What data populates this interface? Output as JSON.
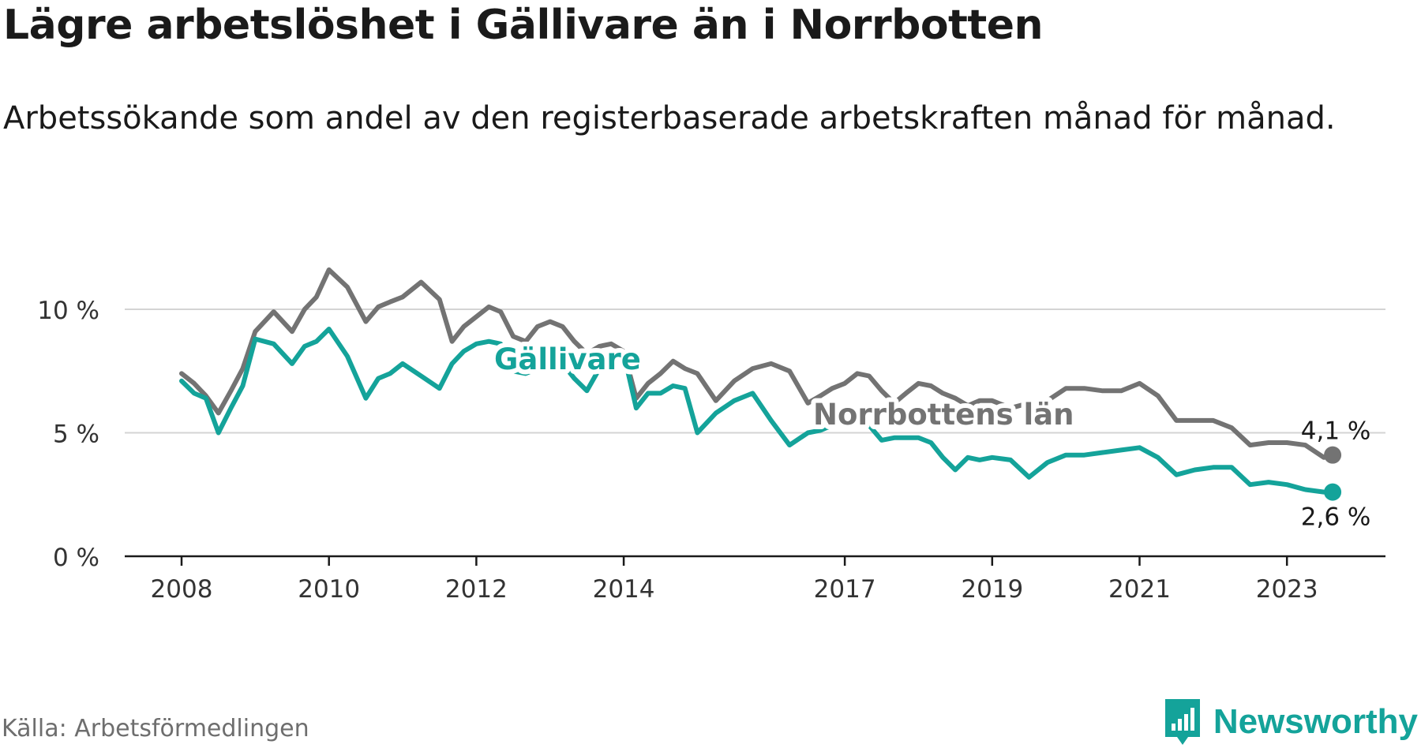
{
  "title": "Lägre arbetslöshet i Gällivare än i Norrbotten",
  "subtitle": "Arbetssökande som andel av den registerbaserade arbetskraften månad för månad.",
  "source": "Källa: Arbetsförmedlingen",
  "brand": "Newsworthy",
  "colors": {
    "gallivare": "#14a39a",
    "norrbotten": "#737373",
    "grid": "#d4d4d4",
    "axis": "#1a1a1a"
  },
  "chart_data": {
    "type": "line",
    "title": "Lägre arbetslöshet i Gällivare än i Norrbotten",
    "xlabel": "",
    "ylabel": "",
    "xlim": [
      2007.0,
      2024.0
    ],
    "ylim": [
      0,
      12
    ],
    "yticks": [
      0,
      5,
      10
    ],
    "ytick_labels": [
      "0 %",
      "5 %",
      "10 %"
    ],
    "xticks": [
      2008,
      2010,
      2012,
      2014,
      2017,
      2019,
      2021,
      2023
    ],
    "xtick_labels": [
      "2008",
      "2010",
      "2012",
      "2014",
      "2017",
      "2019",
      "2021",
      "2023"
    ],
    "grid": true,
    "series": [
      {
        "name": "Norrbottens län",
        "label": "Norrbottens län",
        "end_label": "4,1 %",
        "x": [
          2008.0,
          2008.17,
          2008.33,
          2008.5,
          2008.67,
          2008.83,
          2009.0,
          2009.25,
          2009.5,
          2009.67,
          2009.83,
          2010.0,
          2010.25,
          2010.5,
          2010.67,
          2010.83,
          2011.0,
          2011.25,
          2011.5,
          2011.67,
          2011.83,
          2012.0,
          2012.17,
          2012.33,
          2012.5,
          2012.67,
          2012.83,
          2013.0,
          2013.17,
          2013.33,
          2013.5,
          2013.67,
          2013.83,
          2014.0,
          2014.17,
          2014.33,
          2014.5,
          2014.67,
          2014.83,
          2015.0,
          2015.25,
          2015.5,
          2015.75,
          2016.0,
          2016.25,
          2016.5,
          2016.67,
          2016.83,
          2017.0,
          2017.17,
          2017.33,
          2017.5,
          2017.67,
          2017.83,
          2018.0,
          2018.17,
          2018.33,
          2018.5,
          2018.67,
          2018.83,
          2019.0,
          2019.25,
          2019.5,
          2019.75,
          2020.0,
          2020.25,
          2020.5,
          2020.75,
          2021.0,
          2021.25,
          2021.5,
          2021.75,
          2022.0,
          2022.25,
          2022.5,
          2022.75,
          2023.0,
          2023.25,
          2023.5,
          2023.62
        ],
        "values": [
          7.4,
          7.0,
          6.5,
          5.8,
          6.7,
          7.6,
          9.1,
          9.9,
          9.1,
          10.0,
          10.5,
          11.6,
          10.9,
          9.5,
          10.1,
          10.3,
          10.5,
          11.1,
          10.4,
          8.7,
          9.3,
          9.7,
          10.1,
          9.9,
          8.9,
          8.7,
          9.3,
          9.5,
          9.3,
          8.7,
          8.2,
          8.5,
          8.6,
          8.3,
          6.4,
          7.0,
          7.4,
          7.9,
          7.6,
          7.4,
          6.3,
          7.1,
          7.6,
          7.8,
          7.5,
          6.2,
          6.5,
          6.8,
          7.0,
          7.4,
          7.3,
          6.7,
          6.2,
          6.6,
          7.0,
          6.9,
          6.6,
          6.4,
          6.1,
          6.3,
          6.3,
          6.0,
          6.2,
          6.3,
          6.8,
          6.8,
          6.7,
          6.7,
          7.0,
          6.5,
          5.5,
          5.5,
          5.5,
          5.2,
          4.5,
          4.6,
          4.6,
          4.5,
          4.0,
          4.1
        ]
      },
      {
        "name": "Gällivare",
        "label": "Gällivare",
        "end_label": "2,6 %",
        "x": [
          2008.0,
          2008.17,
          2008.33,
          2008.5,
          2008.67,
          2008.83,
          2009.0,
          2009.25,
          2009.5,
          2009.67,
          2009.83,
          2010.0,
          2010.25,
          2010.5,
          2010.67,
          2010.83,
          2011.0,
          2011.25,
          2011.5,
          2011.67,
          2011.83,
          2012.0,
          2012.17,
          2012.33,
          2012.5,
          2012.67,
          2012.83,
          2013.0,
          2013.17,
          2013.33,
          2013.5,
          2013.67,
          2013.83,
          2014.0,
          2014.17,
          2014.33,
          2014.5,
          2014.67,
          2014.83,
          2015.0,
          2015.25,
          2015.5,
          2015.75,
          2016.0,
          2016.25,
          2016.5,
          2016.67,
          2016.83,
          2017.0,
          2017.17,
          2017.33,
          2017.5,
          2017.67,
          2017.83,
          2018.0,
          2018.17,
          2018.33,
          2018.5,
          2018.67,
          2018.83,
          2019.0,
          2019.25,
          2019.5,
          2019.75,
          2020.0,
          2020.25,
          2020.5,
          2020.75,
          2021.0,
          2021.25,
          2021.5,
          2021.75,
          2022.0,
          2022.25,
          2022.5,
          2022.75,
          2023.0,
          2023.25,
          2023.5,
          2023.62
        ],
        "values": [
          7.1,
          6.6,
          6.4,
          5.0,
          6.0,
          6.9,
          8.8,
          8.6,
          7.8,
          8.5,
          8.7,
          9.2,
          8.1,
          6.4,
          7.2,
          7.4,
          7.8,
          7.3,
          6.8,
          7.8,
          8.3,
          8.6,
          8.7,
          8.6,
          7.5,
          7.4,
          7.6,
          7.8,
          7.8,
          7.2,
          6.7,
          7.6,
          8.1,
          8.2,
          6.0,
          6.6,
          6.6,
          6.9,
          6.8,
          5.0,
          5.8,
          6.3,
          6.6,
          5.5,
          4.5,
          5.0,
          5.1,
          5.3,
          5.4,
          5.5,
          5.3,
          4.7,
          4.8,
          4.8,
          4.8,
          4.6,
          4.0,
          3.5,
          4.0,
          3.9,
          4.0,
          3.9,
          3.2,
          3.8,
          4.1,
          4.1,
          4.2,
          4.3,
          4.4,
          4.0,
          3.3,
          3.5,
          3.6,
          3.6,
          2.9,
          3.0,
          2.9,
          2.7,
          2.6,
          2.6
        ]
      }
    ]
  }
}
